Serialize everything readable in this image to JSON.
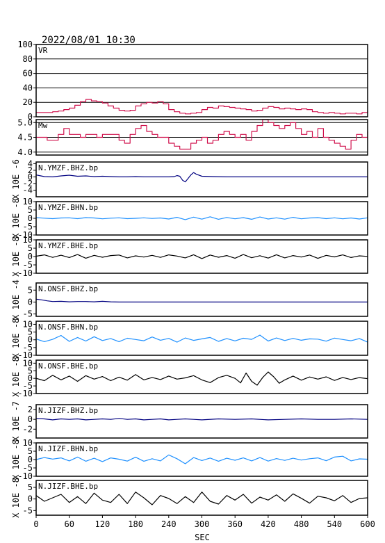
{
  "header": {
    "datetime": "2022/08/01  10:30"
  },
  "colors": {
    "vr": "#d0104c",
    "mw": "#d0104c",
    "dark_blue": "#000080",
    "light_blue": "#1e90ff",
    "black": "#000000"
  },
  "chart_data": {
    "type": "line",
    "xlabel": "SEC",
    "xlim": [
      0,
      600
    ],
    "xticks": [
      0,
      60,
      120,
      180,
      240,
      300,
      360,
      420,
      480,
      540,
      600
    ],
    "panels": [
      {
        "name": "VR",
        "label": "VR",
        "ylim": [
          0,
          100
        ],
        "yticks": [
          0,
          20,
          40,
          60,
          80,
          100
        ],
        "grid": true,
        "color": "#d0104c",
        "step": true,
        "x": [
          0,
          10,
          20,
          30,
          40,
          50,
          60,
          70,
          80,
          90,
          100,
          110,
          120,
          130,
          140,
          150,
          160,
          170,
          180,
          190,
          200,
          210,
          220,
          230,
          240,
          250,
          260,
          270,
          280,
          290,
          300,
          310,
          320,
          330,
          340,
          350,
          360,
          370,
          380,
          390,
          400,
          410,
          420,
          430,
          440,
          450,
          460,
          470,
          480,
          490,
          500,
          510,
          520,
          530,
          540,
          550,
          560,
          570,
          580,
          590,
          600
        ],
        "y": [
          6,
          6,
          6,
          7,
          8,
          10,
          12,
          16,
          21,
          24,
          22,
          21,
          19,
          15,
          12,
          9,
          8,
          9,
          15,
          18,
          20,
          19,
          21,
          18,
          10,
          7,
          5,
          4,
          5,
          6,
          10,
          13,
          12,
          15,
          14,
          13,
          12,
          11,
          10,
          8,
          9,
          12,
          14,
          13,
          11,
          12,
          11,
          10,
          11,
          10,
          7,
          6,
          5,
          6,
          5,
          4,
          5,
          5,
          4,
          6,
          8
        ]
      },
      {
        "name": "Mw",
        "label": "Mw",
        "ylim": [
          3.9,
          5.1
        ],
        "yticks": [
          4.0,
          4.5,
          5.0
        ],
        "ytick_labels": [
          "4.0",
          "4.5",
          "5.0"
        ],
        "grid": true,
        "color": "#d0104c",
        "step": true,
        "x": [
          0,
          10,
          20,
          30,
          40,
          50,
          60,
          70,
          80,
          90,
          100,
          110,
          120,
          130,
          140,
          150,
          160,
          170,
          180,
          190,
          200,
          210,
          220,
          230,
          240,
          250,
          260,
          270,
          280,
          290,
          300,
          310,
          320,
          330,
          340,
          350,
          360,
          370,
          380,
          390,
          400,
          410,
          420,
          430,
          440,
          450,
          460,
          470,
          480,
          490,
          500,
          510,
          520,
          530,
          540,
          550,
          560,
          570,
          580,
          590,
          600
        ],
        "y": [
          4.5,
          4.5,
          4.4,
          4.4,
          4.6,
          4.8,
          4.6,
          4.6,
          4.5,
          4.6,
          4.6,
          4.5,
          4.6,
          4.6,
          4.6,
          4.4,
          4.3,
          4.6,
          4.8,
          4.9,
          4.7,
          4.6,
          4.5,
          4.5,
          4.3,
          4.2,
          4.1,
          4.1,
          4.3,
          4.4,
          4.5,
          4.3,
          4.4,
          4.6,
          4.7,
          4.6,
          4.5,
          4.6,
          4.4,
          4.7,
          4.9,
          5.1,
          5.0,
          4.9,
          4.8,
          4.9,
          5.0,
          4.8,
          4.6,
          4.7,
          4.5,
          4.8,
          4.5,
          4.4,
          4.3,
          4.2,
          4.1,
          4.4,
          4.6,
          4.5,
          4.7
        ]
      },
      {
        "name": "N.YMZF.BHZ.bp",
        "label": "N.YMZF.BHZ.bp",
        "ylim": [
          -6,
          4.5
        ],
        "yticks": [
          -4,
          -2,
          0,
          2,
          4
        ],
        "grid": false,
        "color": "#000080",
        "scale_label": "X 10E -6",
        "x": [
          0,
          15,
          30,
          45,
          60,
          75,
          90,
          105,
          120,
          135,
          150,
          165,
          180,
          195,
          210,
          225,
          240,
          250,
          255,
          260,
          265,
          270,
          275,
          280,
          285,
          290,
          300,
          320,
          345,
          360,
          390,
          420,
          450,
          480,
          510,
          540,
          570,
          600
        ],
        "y": [
          0.6,
          0.1,
          0.0,
          0.3,
          0.5,
          0.2,
          0.3,
          0.1,
          0.2,
          0.1,
          0.0,
          0.0,
          0.1,
          0.0,
          0.0,
          0.0,
          0.0,
          0.1,
          0.4,
          0.2,
          -1.0,
          -1.5,
          -0.5,
          0.6,
          1.3,
          0.8,
          0.2,
          0.1,
          0.0,
          0.0,
          0.0,
          0.0,
          0.0,
          0.0,
          0.0,
          0.0,
          0.0,
          0.0
        ]
      },
      {
        "name": "N.YMZF.BHN.bp",
        "label": "N.YMZF.BHN.bp",
        "ylim": [
          -10,
          10
        ],
        "yticks": [
          -10,
          -5,
          0,
          5,
          10
        ],
        "grid": false,
        "color": "#1e90ff",
        "scale_label": "X 10E -8",
        "x": [
          0,
          15,
          30,
          45,
          60,
          75,
          90,
          105,
          120,
          135,
          150,
          165,
          180,
          195,
          210,
          225,
          240,
          255,
          270,
          285,
          300,
          315,
          330,
          345,
          360,
          375,
          390,
          405,
          420,
          435,
          450,
          465,
          480,
          495,
          510,
          525,
          540,
          555,
          570,
          585,
          600
        ],
        "y": [
          0.4,
          0.1,
          -0.2,
          0.2,
          0.3,
          -0.2,
          0.4,
          0.2,
          -0.3,
          0.1,
          0.3,
          -0.2,
          0.0,
          0.3,
          -0.1,
          0.2,
          -0.4,
          0.6,
          -0.8,
          0.7,
          -0.5,
          0.9,
          -0.6,
          0.5,
          -0.3,
          0.4,
          -0.6,
          0.8,
          -0.4,
          0.3,
          -0.5,
          0.6,
          -0.3,
          0.2,
          0.4,
          -0.2,
          0.3,
          -0.3,
          0.2,
          -0.4,
          0.3
        ]
      },
      {
        "name": "N.YMZF.BHE.bp",
        "label": "N.YMZF.BHE.bp",
        "ylim": [
          -10,
          10
        ],
        "yticks": [
          -10,
          -5,
          0,
          5,
          10
        ],
        "grid": false,
        "color": "#000000",
        "scale_label": "X 10E -8",
        "x": [
          0,
          15,
          30,
          45,
          60,
          75,
          90,
          105,
          120,
          135,
          150,
          165,
          180,
          195,
          210,
          225,
          240,
          255,
          270,
          285,
          300,
          315,
          330,
          345,
          360,
          375,
          390,
          405,
          420,
          435,
          450,
          465,
          480,
          495,
          510,
          525,
          540,
          555,
          570,
          585,
          600
        ],
        "y": [
          0.2,
          1.0,
          -0.5,
          0.8,
          -0.6,
          1.2,
          -1.0,
          0.7,
          -0.4,
          0.6,
          0.9,
          -0.8,
          0.4,
          -0.3,
          0.7,
          -0.5,
          1.0,
          0.3,
          -0.8,
          1.1,
          -1.2,
          0.9,
          -0.4,
          0.6,
          -1.0,
          1.2,
          -0.7,
          0.5,
          -0.9,
          1.1,
          -0.8,
          0.6,
          -0.3,
          0.9,
          -1.1,
          0.7,
          -0.2,
          1.0,
          -0.6,
          0.4,
          0.1
        ]
      },
      {
        "name": "N.ONSF.BHZ.bp",
        "label": "N.ONSF.BHZ.bp",
        "ylim": [
          -6,
          8
        ],
        "yticks": [
          -5,
          0,
          5
        ],
        "grid": false,
        "color": "#000080",
        "scale_label": "X 10E -4",
        "x": [
          0,
          10,
          20,
          30,
          45,
          60,
          75,
          90,
          105,
          120,
          135,
          150,
          180,
          210,
          240,
          300,
          360,
          420,
          480,
          540,
          600
        ],
        "y": [
          1.2,
          0.9,
          0.5,
          0.2,
          0.3,
          0.1,
          0.2,
          0.2,
          0.1,
          0.3,
          0.1,
          0.0,
          0.0,
          0.0,
          0.0,
          0.0,
          0.0,
          0.0,
          0.0,
          0.0,
          0.0
        ]
      },
      {
        "name": "N.ONSF.BHN.bp",
        "label": "N.ONSF.BHN.bp",
        "ylim": [
          -10,
          12
        ],
        "yticks": [
          -10,
          -5,
          0,
          5,
          10
        ],
        "grid": false,
        "color": "#1e90ff",
        "scale_label": "X 10E -8",
        "x": [
          0,
          15,
          30,
          45,
          60,
          75,
          90,
          105,
          120,
          135,
          150,
          165,
          180,
          195,
          210,
          225,
          240,
          255,
          270,
          285,
          300,
          315,
          330,
          345,
          360,
          375,
          390,
          405,
          420,
          435,
          450,
          465,
          480,
          495,
          510,
          525,
          540,
          555,
          570,
          585,
          600
        ],
        "y": [
          0.5,
          -1.2,
          0.3,
          2.8,
          -1.0,
          1.5,
          -0.8,
          2.0,
          -0.5,
          0.8,
          -1.2,
          1.0,
          0.2,
          -0.6,
          1.8,
          -0.3,
          0.9,
          -1.5,
          1.2,
          -0.4,
          0.6,
          1.5,
          -1.0,
          0.8,
          -0.7,
          1.0,
          0.3,
          3.0,
          -0.8,
          1.2,
          -0.5,
          0.9,
          -0.3,
          0.6,
          0.4,
          -0.9,
          1.1,
          0.2,
          -0.6,
          0.8,
          -1.5
        ]
      },
      {
        "name": "N.ONSF.BHE.bp",
        "label": "N.ONSF.BHE.bp",
        "ylim": [
          -10,
          12
        ],
        "yticks": [
          -10,
          -5,
          0,
          5,
          10
        ],
        "grid": false,
        "color": "#000000",
        "scale_label": "X 10E -8",
        "x": [
          0,
          15,
          30,
          45,
          60,
          75,
          90,
          105,
          120,
          135,
          150,
          165,
          180,
          195,
          210,
          225,
          240,
          255,
          270,
          285,
          300,
          315,
          330,
          345,
          360,
          370,
          380,
          390,
          400,
          410,
          420,
          430,
          440,
          450,
          465,
          480,
          495,
          510,
          525,
          540,
          555,
          570,
          585,
          600
        ],
        "y": [
          0.0,
          -1.5,
          2.0,
          -1.0,
          1.5,
          -2.0,
          1.8,
          -0.5,
          1.2,
          -1.5,
          0.8,
          -1.2,
          2.5,
          -1.0,
          0.6,
          -0.8,
          1.5,
          -0.5,
          0.3,
          1.8,
          -1.0,
          -2.8,
          0.5,
          2.0,
          0.0,
          -3.0,
          3.5,
          -2.0,
          -4.5,
          0.5,
          4.2,
          1.0,
          -3.2,
          -1.0,
          1.5,
          -1.2,
          0.9,
          -0.5,
          1.0,
          -1.4,
          0.6,
          -0.8,
          0.5,
          -0.2
        ]
      },
      {
        "name": "N.JIZF.BHZ.bp",
        "label": "N.JIZF.BHZ.bp",
        "ylim": [
          -3.8,
          3
        ],
        "yticks": [
          -2,
          0,
          2
        ],
        "grid": false,
        "color": "#000080",
        "scale_label": "X 10E -7",
        "x": [
          0,
          15,
          30,
          45,
          60,
          75,
          90,
          105,
          120,
          135,
          150,
          165,
          180,
          195,
          210,
          225,
          240,
          255,
          270,
          285,
          300,
          330,
          360,
          390,
          420,
          450,
          480,
          510,
          540,
          570,
          600
        ],
        "y": [
          0.2,
          0.1,
          -0.1,
          0.1,
          0.0,
          0.1,
          -0.1,
          0.0,
          0.1,
          0.0,
          0.2,
          0.0,
          0.1,
          -0.1,
          0.0,
          0.1,
          -0.1,
          0.0,
          0.1,
          0.0,
          -0.1,
          0.1,
          0.0,
          0.1,
          -0.1,
          0.0,
          0.1,
          0.0,
          0.0,
          0.1,
          0.0
        ]
      },
      {
        "name": "N.JIZF.BHN.bp",
        "label": "N.JIZF.BHN.bp",
        "ylim": [
          -10,
          10
        ],
        "yticks": [
          -10,
          -5,
          0,
          5,
          10
        ],
        "grid": false,
        "color": "#1e90ff",
        "scale_label": "X 10E -8",
        "x": [
          0,
          15,
          30,
          45,
          60,
          75,
          90,
          105,
          120,
          135,
          150,
          165,
          180,
          195,
          210,
          225,
          240,
          255,
          270,
          285,
          300,
          315,
          330,
          345,
          360,
          375,
          390,
          405,
          420,
          435,
          450,
          465,
          480,
          495,
          510,
          525,
          540,
          555,
          570,
          585,
          600
        ],
        "y": [
          0.0,
          1.2,
          0.3,
          1.0,
          -0.8,
          1.5,
          -1.0,
          0.8,
          -1.2,
          1.0,
          0.2,
          -0.9,
          1.4,
          -1.0,
          0.5,
          -0.8,
          2.8,
          0.5,
          -2.5,
          1.2,
          -0.6,
          0.9,
          -1.0,
          0.8,
          -0.4,
          1.0,
          -0.8,
          1.2,
          -0.9,
          0.6,
          -0.5,
          0.8,
          -0.3,
          0.5,
          1.0,
          -0.7,
          1.5,
          2.0,
          -0.8,
          0.4,
          0.2
        ]
      },
      {
        "name": "N.JIZF.BHE.bp",
        "label": "N.JIZF.BHE.bp",
        "ylim": [
          -7,
          8
        ],
        "yticks": [
          -5,
          0,
          5
        ],
        "grid": false,
        "color": "#000000",
        "scale_label": "X 10E -8",
        "x": [
          0,
          15,
          30,
          45,
          60,
          75,
          90,
          105,
          120,
          135,
          150,
          165,
          180,
          195,
          210,
          225,
          240,
          255,
          270,
          285,
          300,
          315,
          330,
          345,
          360,
          375,
          390,
          405,
          420,
          435,
          450,
          465,
          480,
          495,
          510,
          525,
          540,
          555,
          570,
          585,
          600
        ],
        "y": [
          1.5,
          -1.0,
          0.5,
          2.0,
          -1.5,
          1.0,
          -2.0,
          2.5,
          -0.5,
          -1.5,
          2.0,
          -2.0,
          3.0,
          0.5,
          -2.5,
          1.5,
          0.2,
          -2.0,
          1.0,
          -1.5,
          3.0,
          -1.0,
          -2.2,
          1.5,
          -0.5,
          2.0,
          -1.8,
          0.8,
          -0.5,
          1.8,
          -1.0,
          2.2,
          0.3,
          -1.8,
          1.2,
          0.5,
          -0.8,
          1.5,
          -1.5,
          0.2,
          0.5
        ]
      }
    ]
  }
}
